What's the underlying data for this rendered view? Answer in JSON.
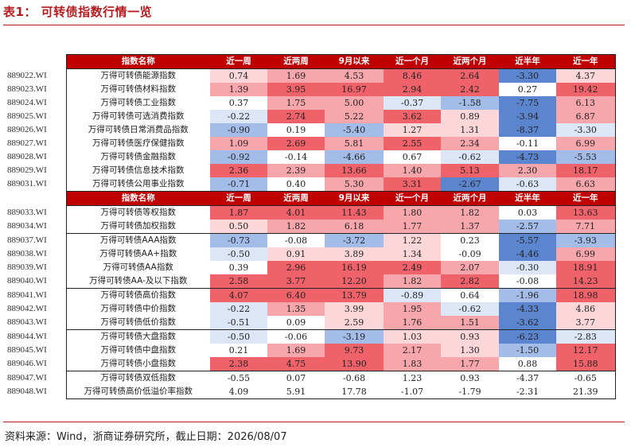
{
  "title": "表1：  可转债指数行情一览",
  "headers": [
    "指数名称",
    "近一周",
    "近两周",
    "9月以来",
    "近一个月",
    "近两个月",
    "近半年",
    "近一年"
  ],
  "sections": [
    {
      "header": true,
      "rows": [
        {
          "code": "889022.WI",
          "name": "万得可转债能源指数",
          "vals": [
            "0.74",
            "1.69",
            "4.53",
            "8.46",
            "2.64",
            "-3.30",
            "4.37"
          ]
        },
        {
          "code": "889023.WI",
          "name": "万得可转债材料指数",
          "vals": [
            "1.39",
            "3.95",
            "16.97",
            "2.94",
            "2.42",
            "0.27",
            "19.42"
          ]
        },
        {
          "code": "889024.WI",
          "name": "万得可转债工业指数",
          "vals": [
            "0.37",
            "1.75",
            "5.00",
            "-0.37",
            "-1.58",
            "-7.75",
            "6.13"
          ]
        },
        {
          "code": "889025.WI",
          "name": "万得可转债可选消费指数",
          "vals": [
            "-0.22",
            "2.74",
            "5.22",
            "3.62",
            "0.89",
            "-3.94",
            "6.87"
          ]
        },
        {
          "code": "889026.WI",
          "name": "万得可转债日常消费品指数",
          "vals": [
            "-0.90",
            "0.19",
            "-5.40",
            "1.27",
            "1.31",
            "-8.37",
            "-3.30"
          ]
        },
        {
          "code": "889027.WI",
          "name": "万得可转债医疗保健指数",
          "vals": [
            "1.09",
            "2.69",
            "5.81",
            "2.55",
            "2.34",
            "-0.11",
            "6.99"
          ]
        },
        {
          "code": "889028.WI",
          "name": "万得可转债金融指数",
          "vals": [
            "-0.92",
            "-0.14",
            "-4.66",
            "0.67",
            "-0.62",
            "-4.73",
            "-5.53"
          ]
        },
        {
          "code": "889029.WI",
          "name": "万得可转债信息技术指数",
          "vals": [
            "2.36",
            "2.39",
            "13.66",
            "1.40",
            "5.13",
            "2.30",
            "18.17"
          ]
        },
        {
          "code": "889031.WI",
          "name": "万得可转债公用事业指数",
          "vals": [
            "-0.71",
            "0.40",
            "5.30",
            "3.31",
            "-2.67",
            "-0.63",
            "6.63"
          ]
        }
      ]
    },
    {
      "header": true,
      "rows": [
        {
          "code": "889033.WI",
          "name": "万得可转债等权指数",
          "vals": [
            "1.87",
            "4.01",
            "11.43",
            "1.80",
            "1.82",
            "0.03",
            "13.63"
          ]
        },
        {
          "code": "889034.WI",
          "name": "万得可转债加权指数",
          "vals": [
            "0.50",
            "1.82",
            "6.18",
            "1.77",
            "1.37",
            "-2.57",
            "7.71"
          ]
        }
      ]
    },
    {
      "header": false,
      "rows": [
        {
          "code": "889037.WI",
          "name": "万得可转债AAA指数",
          "vals": [
            "-0.73",
            "-0.08",
            "-3.72",
            "1.22",
            "0.23",
            "-5.57",
            "-3.93"
          ]
        },
        {
          "code": "889038.WI",
          "name": "万得可转债AA+指数",
          "vals": [
            "-0.50",
            "0.91",
            "3.89",
            "1.34",
            "-0.09",
            "-4.46",
            "6.99"
          ]
        },
        {
          "code": "889039.WI",
          "name": "万得可转债AA指数",
          "vals": [
            "0.39",
            "2.96",
            "16.19",
            "2.49",
            "2.07",
            "-0.30",
            "18.91"
          ]
        },
        {
          "code": "889040.WI",
          "name": "万得可转债AA-及以下指数",
          "vals": [
            "2.58",
            "3.77",
            "12.20",
            "1.82",
            "2.82",
            "-0.08",
            "14.23"
          ]
        }
      ]
    },
    {
      "header": false,
      "rows": [
        {
          "code": "889041.WI",
          "name": "万得可转债高价指数",
          "vals": [
            "4.07",
            "6.40",
            "13.79",
            "-0.89",
            "0.64",
            "-1.96",
            "18.98"
          ]
        },
        {
          "code": "889042.WI",
          "name": "万得可转债中价指数",
          "vals": [
            "-0.22",
            "1.35",
            "3.99",
            "1.95",
            "-0.62",
            "-4.33",
            "4.86"
          ]
        },
        {
          "code": "889043.WI",
          "name": "万得可转债低价指数",
          "vals": [
            "-0.51",
            "0.09",
            "2.59",
            "1.76",
            "1.51",
            "-3.62",
            "3.77"
          ]
        }
      ]
    },
    {
      "header": false,
      "rows": [
        {
          "code": "889044.WI",
          "name": "万得可转债大盘指数",
          "vals": [
            "-0.50",
            "-0.06",
            "-3.19",
            "1.03",
            "0.93",
            "-6.23",
            "-2.83"
          ]
        },
        {
          "code": "889045.WI",
          "name": "万得可转债中盘指数",
          "vals": [
            "0.21",
            "1.69",
            "9.73",
            "2.17",
            "1.30",
            "-1.50",
            "12.17"
          ]
        },
        {
          "code": "889046.WI",
          "name": "万得可转债小盘指数",
          "vals": [
            "2.38",
            "4.75",
            "13.90",
            "1.83",
            "1.77",
            "0.88",
            "15.88"
          ]
        }
      ]
    },
    {
      "header": false,
      "uncolored": true,
      "rows": [
        {
          "code": "889047.WI",
          "name": "万得可转债双低指数",
          "vals": [
            "-0.55",
            "0.07",
            "-0.68",
            "1.23",
            "0.93",
            "-4.37",
            "-0.65"
          ]
        },
        {
          "code": "889048.WI",
          "name": "万得可转债高价低溢价率指数",
          "vals": [
            "4.09",
            "5.91",
            "17.78",
            "-1.07",
            "-1.79",
            "-2.31",
            "21.39"
          ]
        }
      ]
    }
  ],
  "colors": {
    "pos_strong": "#f0626a",
    "pos_mid": "#f7a6ab",
    "pos_light": "#fbd7da",
    "neg_strong": "#5b85cf",
    "neg_mid": "#a3bde8",
    "neg_light": "#dde6f6",
    "header_bg": "#c00000"
  },
  "footer": "资料来源：Wind，浙商证券研究所，截止日期：2026/08/07"
}
